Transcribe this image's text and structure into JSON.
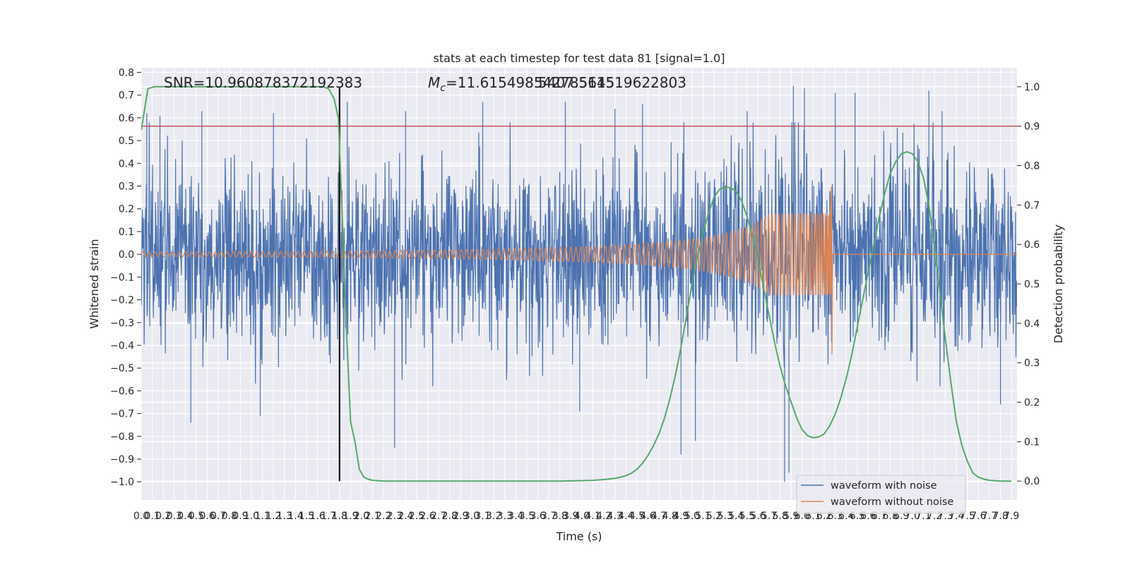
{
  "chart_data": {
    "type": "line",
    "title": "stats at each timestep for test data 81 [signal=1.0]",
    "xlabel": "Time (s)",
    "ylabel_left": "Whitened strain",
    "ylabel_right": "Detection probability",
    "xlim": [
      0.0,
      7.95
    ],
    "ylim_left": [
      -1.08,
      0.82
    ],
    "ylim_right": [
      -0.048,
      1.048
    ],
    "grid": true,
    "legend_position": "lower-right",
    "x_ticks": [
      "0.0",
      "0.1",
      "0.2",
      "0.3",
      "0.4",
      "0.5",
      "0.6",
      "0.7",
      "0.8",
      "0.9",
      "1.0",
      "1.1",
      "1.2",
      "1.3",
      "1.4",
      "1.5",
      "1.6",
      "1.7",
      "1.8",
      "1.9",
      "2.0",
      "2.1",
      "2.2",
      "2.3",
      "2.4",
      "2.5",
      "2.6",
      "2.7",
      "2.8",
      "2.9",
      "3.0",
      "3.1",
      "3.2",
      "3.3",
      "3.4",
      "3.5",
      "3.6",
      "3.7",
      "3.8",
      "3.9",
      "4.0",
      "4.1",
      "4.2",
      "4.3",
      "4.4",
      "4.5",
      "4.6",
      "4.7",
      "4.8",
      "4.9",
      "5.0",
      "5.1",
      "5.2",
      "5.3",
      "5.4",
      "5.5",
      "5.6",
      "5.7",
      "5.8",
      "5.9",
      "6.0",
      "6.1",
      "6.2",
      "6.3",
      "6.4",
      "6.5",
      "6.6",
      "6.7",
      "6.8",
      "6.9",
      "7.0",
      "7.1",
      "7.2",
      "7.3",
      "7.4",
      "7.5",
      "7.6",
      "7.7",
      "7.8",
      "7.9"
    ],
    "y_ticks_left": [
      "0.8",
      "0.7",
      "0.6",
      "0.5",
      "0.4",
      "0.3",
      "0.2",
      "0.1",
      "0.0",
      "−0.1",
      "−0.2",
      "−0.3",
      "−0.4",
      "−0.5",
      "−0.6",
      "−0.7",
      "−0.8",
      "−0.9",
      "−1.0"
    ],
    "y_ticks_right": [
      "1.0",
      "0.9",
      "0.8",
      "0.7",
      "0.6",
      "0.5",
      "0.4",
      "0.3",
      "0.2",
      "0.1",
      "0.0"
    ],
    "annotations": {
      "snr": "SNR=10.960878372192383",
      "mc": "=11.615498542785645",
      "mc_symbol_base": "M",
      "mc_symbol_sub": "c",
      "mc_overlap": "5407.511519622803"
    },
    "threshold_probability": 0.9,
    "vertical_line_time": 1.8,
    "merger_time": 6.27,
    "series": [
      {
        "name": "waveform with noise",
        "color": "#4c72b0",
        "style": "noise",
        "approx_envelope": [
          -0.45,
          0.55
        ],
        "peak_positive": [
          [
            0.05,
            0.62
          ],
          [
            0.17,
            0.61
          ],
          [
            0.55,
            0.63
          ],
          [
            1.2,
            0.62
          ],
          [
            1.87,
            0.67
          ],
          [
            2.4,
            0.63
          ],
          [
            3.1,
            0.67
          ],
          [
            3.85,
            0.67
          ],
          [
            4.3,
            0.64
          ],
          [
            4.55,
            0.66
          ],
          [
            5.5,
            0.63
          ],
          [
            5.92,
            0.74
          ],
          [
            6.02,
            0.73
          ],
          [
            6.3,
            0.71
          ],
          [
            6.48,
            0.71
          ],
          [
            7.15,
            0.72
          ],
          [
            7.27,
            0.63
          ]
        ],
        "peak_negative": [
          [
            0.45,
            -0.74
          ],
          [
            1.08,
            -0.71
          ],
          [
            1.8,
            -0.5
          ],
          [
            2.3,
            -0.85
          ],
          [
            3.98,
            -0.69
          ],
          [
            4.9,
            -0.88
          ],
          [
            5.03,
            -0.82
          ],
          [
            5.84,
            -1.0
          ],
          [
            5.88,
            -0.96
          ],
          [
            7.8,
            -0.66
          ]
        ]
      },
      {
        "name": "waveform without noise",
        "color": "#dd8452",
        "style": "chirp",
        "amplitude_start": 0.01,
        "amplitude_near_merger": 0.18,
        "peak_at_merger": [
          0.3,
          -0.44
        ],
        "frequency_start_hz": 18,
        "frequency_near_merger_hz": 50
      },
      {
        "name": "",
        "color": "#55a868",
        "style": "probability",
        "x": [
          0.0,
          0.06,
          0.12,
          0.2,
          0.3,
          0.4,
          0.5,
          0.6,
          0.7,
          0.8,
          0.9,
          1.0,
          1.1,
          1.2,
          1.3,
          1.4,
          1.5,
          1.55,
          1.6,
          1.65,
          1.7,
          1.75,
          1.79,
          1.82,
          1.86,
          1.9,
          1.94,
          1.98,
          2.02,
          2.06,
          2.1,
          2.15,
          2.2,
          2.3,
          2.4,
          2.6,
          2.8,
          3.0,
          3.2,
          3.4,
          3.6,
          3.8,
          4.0,
          4.1,
          4.2,
          4.3,
          4.35,
          4.4,
          4.45,
          4.5,
          4.55,
          4.6,
          4.65,
          4.7,
          4.75,
          4.8,
          4.85,
          4.9,
          4.95,
          5.0,
          5.05,
          5.1,
          5.15,
          5.2,
          5.25,
          5.3,
          5.35,
          5.4,
          5.45,
          5.5,
          5.55,
          5.6,
          5.65,
          5.7,
          5.75,
          5.8,
          5.85,
          5.9,
          5.95,
          6.0,
          6.05,
          6.1,
          6.15,
          6.2,
          6.25,
          6.3,
          6.35,
          6.4,
          6.45,
          6.5,
          6.55,
          6.6,
          6.65,
          6.7,
          6.75,
          6.8,
          6.85,
          6.9,
          6.95,
          7.0,
          7.05,
          7.1,
          7.15,
          7.2,
          7.25,
          7.3,
          7.35,
          7.4,
          7.45,
          7.5,
          7.55,
          7.6,
          7.65,
          7.7,
          7.75,
          7.8,
          7.85,
          7.9
        ],
        "values": [
          0.89,
          0.995,
          1.0,
          1.0,
          1.0,
          1.0,
          1.0,
          1.0,
          1.0,
          1.0,
          1.0,
          1.0,
          1.0,
          1.0,
          1.0,
          1.0,
          1.0,
          1.0,
          1.0,
          1.0,
          0.995,
          0.97,
          0.92,
          0.7,
          0.4,
          0.15,
          0.1,
          0.03,
          0.01,
          0.005,
          0.002,
          0.001,
          0.0,
          0.0,
          0.0,
          0.0,
          0.0,
          0.0,
          0.0,
          0.0,
          0.0,
          0.0,
          0.001,
          0.002,
          0.004,
          0.007,
          0.01,
          0.014,
          0.02,
          0.03,
          0.045,
          0.065,
          0.09,
          0.12,
          0.16,
          0.21,
          0.27,
          0.34,
          0.42,
          0.5,
          0.57,
          0.63,
          0.68,
          0.72,
          0.74,
          0.746,
          0.744,
          0.735,
          0.71,
          0.67,
          0.62,
          0.56,
          0.49,
          0.42,
          0.35,
          0.29,
          0.24,
          0.2,
          0.16,
          0.13,
          0.115,
          0.11,
          0.112,
          0.12,
          0.14,
          0.17,
          0.21,
          0.26,
          0.32,
          0.39,
          0.46,
          0.53,
          0.6,
          0.67,
          0.73,
          0.78,
          0.81,
          0.83,
          0.835,
          0.83,
          0.81,
          0.77,
          0.7,
          0.6,
          0.48,
          0.36,
          0.25,
          0.15,
          0.09,
          0.05,
          0.02,
          0.01,
          0.005,
          0.002,
          0.001,
          0.0,
          0.0,
          0.0
        ]
      }
    ]
  }
}
